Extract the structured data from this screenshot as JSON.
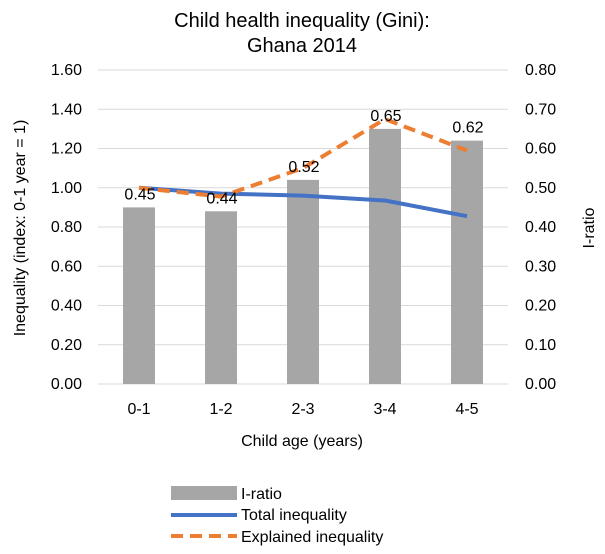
{
  "chart_data": {
    "type": "bar",
    "title_line1": "Child health inequality (Gini):",
    "title_line2": "Ghana 2014",
    "xlabel": "Child age (years)",
    "ylabel_left": "Inequality  (index: 0-1 year = 1)",
    "ylabel_right": "I-ratio",
    "categories": [
      "0-1",
      "1-2",
      "2-3",
      "3-4",
      "4-5"
    ],
    "ylim_left": [
      0,
      1.6
    ],
    "ylim_right": [
      0,
      0.8
    ],
    "left_ticks": [
      "0.00",
      "0.20",
      "0.40",
      "0.60",
      "0.80",
      "1.00",
      "1.20",
      "1.40",
      "1.60"
    ],
    "right_ticks": [
      "0.00",
      "0.10",
      "0.20",
      "0.30",
      "0.40",
      "0.50",
      "0.60",
      "0.70",
      "0.80"
    ],
    "grid": true,
    "legend_position": "bottom",
    "series": [
      {
        "name": "I-ratio",
        "kind": "bar",
        "axis": "right",
        "color": "#a6a6a6",
        "values": [
          0.45,
          0.44,
          0.52,
          0.65,
          0.62
        ],
        "labels": [
          "0.45",
          "0.44",
          "0.52",
          "0.65",
          "0.62"
        ]
      },
      {
        "name": "Total inequality",
        "kind": "line",
        "axis": "left",
        "color": "#4472c4",
        "values": [
          1.0,
          0.97,
          0.96,
          0.935,
          0.855
        ]
      },
      {
        "name": "Explained inequality",
        "kind": "dashed-line",
        "axis": "left",
        "color": "#ed7d31",
        "values": [
          1.0,
          0.955,
          1.1,
          1.35,
          1.19
        ]
      }
    ]
  }
}
